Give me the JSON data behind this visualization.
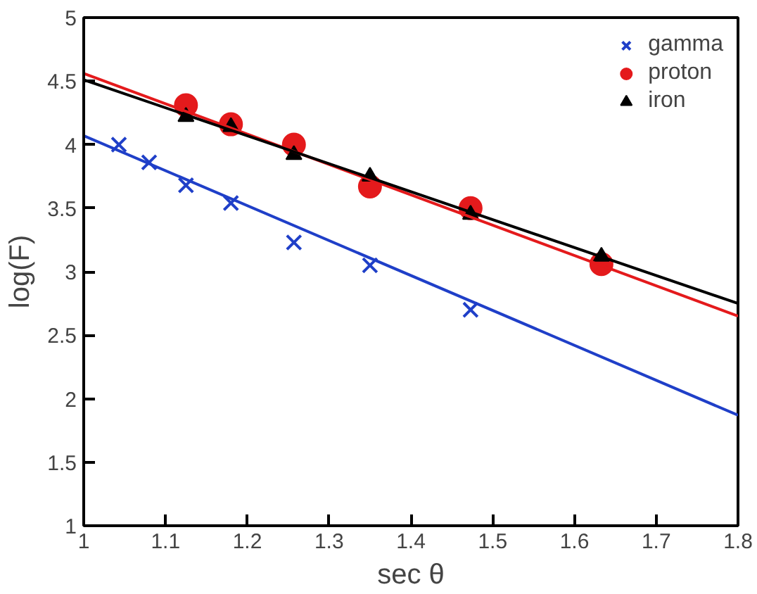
{
  "chart_data": {
    "type": "scatter",
    "xlabel": "sec θ",
    "ylabel": "log(F)",
    "xlim": [
      1,
      1.8
    ],
    "xticks": [
      1,
      1.1,
      1.2,
      1.3,
      1.4,
      1.5,
      1.6,
      1.7,
      1.8
    ],
    "ylim": [
      1,
      5
    ],
    "yticks": [
      1,
      1.5,
      2,
      2.5,
      3,
      3.5,
      4,
      4.5,
      5
    ],
    "grid": false,
    "legend": "top right",
    "series": [
      {
        "name": "gamma",
        "color": "#1f3fc8",
        "marker": "cross",
        "x": [
          1.043,
          1.08,
          1.125,
          1.18,
          1.257,
          1.35,
          1.473
        ],
        "values": [
          4.0,
          3.86,
          3.68,
          3.54,
          3.23,
          3.05,
          2.7
        ]
      },
      {
        "name": "proton",
        "color": "#e41a1c",
        "marker": "circle",
        "x": [
          1.125,
          1.18,
          1.257,
          1.35,
          1.473,
          1.633
        ],
        "values": [
          4.31,
          4.16,
          4.0,
          3.67,
          3.5,
          3.06
        ]
      },
      {
        "name": "iron",
        "color": "#000000",
        "marker": "triangle",
        "x": [
          1.125,
          1.18,
          1.257,
          1.35,
          1.473,
          1.633
        ],
        "values": [
          4.22,
          4.14,
          3.92,
          3.75,
          3.45,
          3.12
        ]
      },
      {
        "type": "line",
        "color": "#1f3fc8",
        "x": [
          1,
          1.8
        ],
        "values": [
          4.07,
          1.87
        ]
      },
      {
        "type": "line",
        "color": "#e41a1c",
        "x": [
          1,
          1.8
        ],
        "values": [
          4.56,
          2.65
        ]
      },
      {
        "type": "line",
        "color": "#000000",
        "x": [
          1,
          1.8
        ],
        "values": [
          4.51,
          2.75
        ]
      }
    ]
  }
}
